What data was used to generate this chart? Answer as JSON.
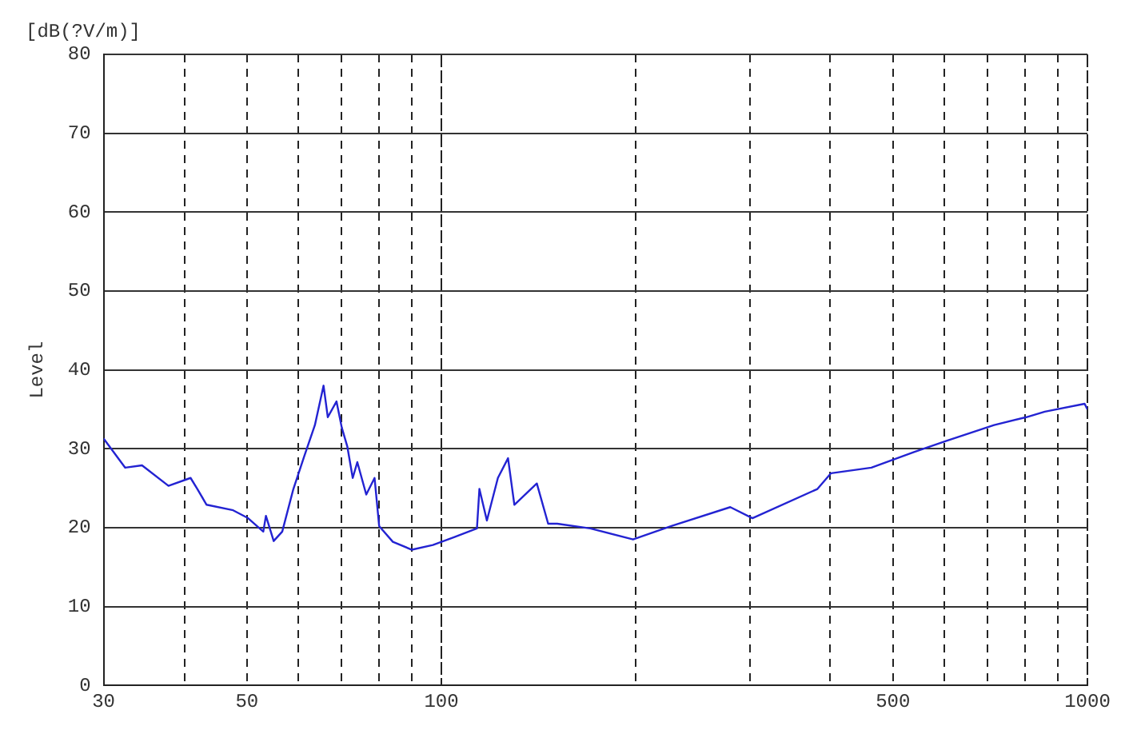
{
  "chart_data": {
    "type": "line",
    "ylabel": "Level",
    "annotations": [
      "[dB(?V/m)]"
    ],
    "x": [
      30,
      32.4,
      34.4,
      37.8,
      40.9,
      41.9,
      43.3,
      47.6,
      50.2,
      53,
      53.5,
      55,
      56.7,
      59,
      61.3,
      63.7,
      65.7,
      66.7,
      68.8,
      70.1,
      71.5,
      72.9,
      74.1,
      76.5,
      78.8,
      80.1,
      84.1,
      90,
      97,
      104.8,
      113.5,
      114.5,
      117.6,
      122.3,
      126.8,
      129.7,
      140.5,
      146.3,
      151.1,
      170,
      198,
      227,
      280,
      303,
      382,
      401,
      463,
      540,
      605,
      717,
      804,
      859,
      990,
      1000
    ],
    "series": [
      {
        "color": "#2323d2",
        "values": [
          31.3,
          27.6,
          27.9,
          25.3,
          26.3,
          24.9,
          22.9,
          22.2,
          21.2,
          19.5,
          21.5,
          18.3,
          19.5,
          24.9,
          29,
          33,
          38,
          34,
          36,
          32.7,
          30.3,
          26.3,
          28.3,
          24.2,
          26.3,
          20.2,
          18.2,
          17.2,
          17.8,
          18.8,
          19.9,
          24.9,
          20.9,
          26.3,
          28.8,
          22.9,
          25.6,
          20.5,
          20.5,
          19.9,
          18.5,
          20.2,
          22.6,
          21.2,
          24.9,
          26.9,
          27.6,
          29.6,
          31,
          33,
          34,
          34.7,
          35.7,
          35
        ]
      }
    ],
    "log": "x",
    "xlim": [
      30,
      1000
    ],
    "xticks": [
      30,
      {
        "value": 40,
        "label": null
      },
      50,
      {
        "value": 60,
        "label": null
      },
      {
        "value": 70,
        "label": null
      },
      {
        "value": 80,
        "label": null
      },
      {
        "value": 90,
        "label": null
      },
      100,
      {
        "value": 200,
        "label": null
      },
      {
        "value": 300,
        "label": null
      },
      {
        "value": 400,
        "label": null
      },
      500,
      {
        "value": 600,
        "label": null
      },
      {
        "value": 700,
        "label": null
      },
      {
        "value": 800,
        "label": null
      },
      {
        "value": 900,
        "label": null
      },
      1000
    ],
    "ylim": [
      0,
      80
    ],
    "yticks": [
      0,
      10,
      20,
      30,
      40,
      50,
      60,
      70,
      80
    ],
    "grid": true,
    "marker": "none",
    "line_style": "solid",
    "legend": false
  }
}
